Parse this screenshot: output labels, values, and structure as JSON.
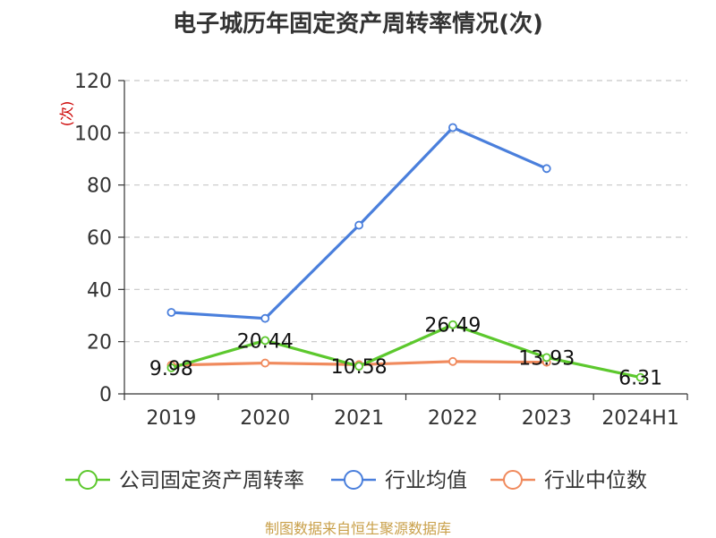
{
  "chart_data": {
    "type": "line",
    "title": "电子城历年固定资产周转率情况(次)",
    "ylabel": "(次)",
    "xlabel": "",
    "categories": [
      "2019",
      "2020",
      "2021",
      "2022",
      "2023",
      "2024H1"
    ],
    "ylim": [
      0,
      120
    ],
    "yticks": [
      0,
      20,
      40,
      60,
      80,
      100,
      120
    ],
    "grid": true,
    "legend_position": "bottom",
    "series": [
      {
        "name": "公司固定资产周转率",
        "color": "#5cc82d",
        "values": [
          9.98,
          20.44,
          10.58,
          26.49,
          13.93,
          6.31
        ],
        "data_labels": [
          "9.98",
          "20.44",
          "10.58",
          "26.49",
          "13.93",
          "6.31"
        ]
      },
      {
        "name": "行业均值",
        "color": "#4a7fdc",
        "values": [
          31.2,
          28.9,
          64.6,
          102.0,
          86.3,
          null
        ]
      },
      {
        "name": "行业中位数",
        "color": "#f08a5d",
        "values": [
          11.0,
          11.8,
          11.2,
          12.4,
          12.1,
          null
        ]
      }
    ]
  },
  "source": "制图数据来自恒生聚源数据库"
}
